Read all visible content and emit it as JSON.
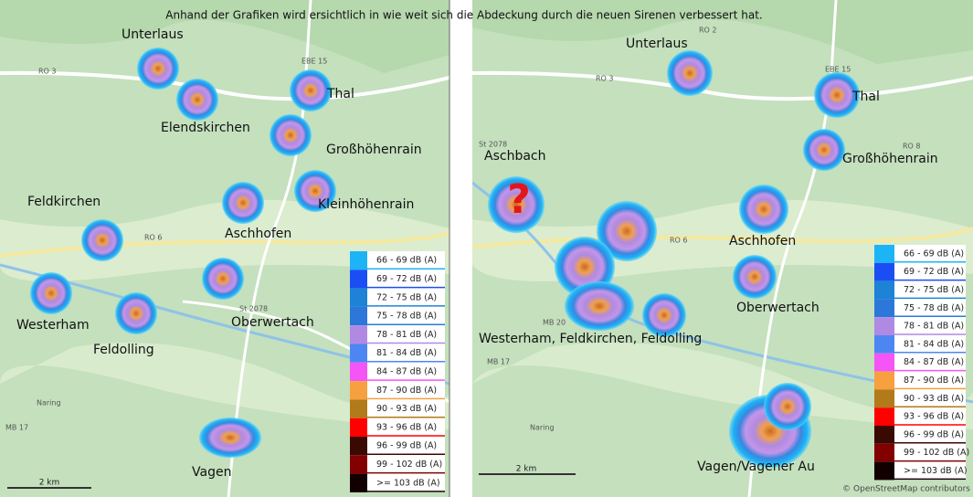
{
  "caption": "Anhand der Grafiken wird ersichtlich in wie weit sich die Abdeckung durch die neuen Sirenen verbessert hat.",
  "legend": [
    {
      "label": "66 - 69 dB (A)",
      "color": "#1cb4f6"
    },
    {
      "label": "69 - 72 dB (A)",
      "color": "#1a4ef2"
    },
    {
      "label": "72 - 75 dB (A)",
      "color": "#1e82d6"
    },
    {
      "label": "75 - 78 dB (A)",
      "color": "#2b78da"
    },
    {
      "label": "78 - 81 dB (A)",
      "color": "#b08ae2"
    },
    {
      "label": "81 - 84 dB (A)",
      "color": "#4d86f2"
    },
    {
      "label": "84 - 87 dB (A)",
      "color": "#f455f4"
    },
    {
      "label": "87 - 90 dB (A)",
      "color": "#f6a040"
    },
    {
      "label": "90 - 93 dB (A)",
      "color": "#b27a18"
    },
    {
      "label": "93 - 96 dB (A)",
      "color": "#ff0000"
    },
    {
      "label": "96 - 99 dB (A)",
      "color": "#3a0a02"
    },
    {
      "label": "99 - 102 dB (A)",
      "color": "#820000"
    },
    {
      "label": ">= 103 dB (A)",
      "color": "#120000"
    }
  ],
  "left_map": {
    "places": [
      "Unterlaus",
      "Elendskirchen",
      "Thal",
      "Großhöhenrain",
      "Feldkirchen",
      "Aschhofen",
      "Kleinhöhenrain",
      "Westerham",
      "Feldolling",
      "Oberwertach",
      "Vagen"
    ],
    "roads": [
      "RO 3",
      "EBE 15",
      "RO 6",
      "St 2078",
      "MB 17",
      "Naring"
    ],
    "scale": "2 km"
  },
  "right_map": {
    "places": [
      "Unterlaus",
      "Thal",
      "Aschbach",
      "Großhöhenrain",
      "Aschhofen",
      "Oberwertach",
      "Westerham, Feldkirchen, Feldolling",
      "Vagen/Vagener Au"
    ],
    "marker": "?",
    "roads": [
      "RO 2",
      "RO 3",
      "EBE 15",
      "RO 8",
      "St 2078",
      "RO 6",
      "MB 20",
      "MB 17",
      "Naring"
    ],
    "scale": "2 km",
    "attribution": "© OpenStreetMap contributors"
  }
}
